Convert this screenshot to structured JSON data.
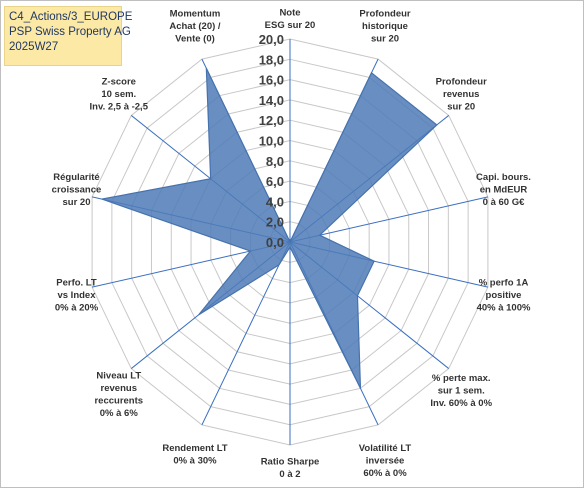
{
  "header": {
    "line1": "C4_Actions/3_EUROPE",
    "line2": "PSP Swiss Property AG",
    "line3": "2025W27"
  },
  "colors": {
    "fill": "#4f7bb7",
    "stroke": "#4672ad",
    "grid": "#c8c8c8",
    "background": "#ffffff",
    "title_box": "#fde9a6"
  },
  "chart_data": {
    "type": "radar",
    "grid": true,
    "rmin": 0,
    "rmax": 20,
    "tick_step": 2,
    "tick_labels": [
      "0,0",
      "2,0",
      "4,0",
      "6,0",
      "8,0",
      "10,0",
      "12,0",
      "14,0",
      "16,0",
      "18,0",
      "20,0"
    ],
    "categories": [
      [
        "Note",
        "ESG sur 20"
      ],
      [
        "Profondeur",
        "historique",
        "sur 20"
      ],
      [
        "Profondeur",
        "revenus",
        "sur 20"
      ],
      [
        "Capi. bours.",
        "en MdEUR",
        "0 à 60 G€"
      ],
      [
        "% perfo 1A",
        "positive",
        "40% à 100%"
      ],
      [
        "% perte max.",
        "sur 1 sem.",
        "Inv. 60% à 0%"
      ],
      [
        "Volatilité LT",
        "inversée",
        "60% à 0%"
      ],
      [
        "Ratio Sharpe",
        "0 à 2"
      ],
      [
        "Rendement LT",
        "0% à 30%"
      ],
      [
        "Niveau LT",
        "revenus",
        "reccurents",
        "0% à 6%"
      ],
      [
        "Perfo. LT",
        "vs Index",
        "0% à 20%"
      ],
      [
        "Régularité",
        "croissance",
        "sur 20"
      ],
      [
        "Z-score",
        "10 sem.",
        "Inv. 2,5 à -2,5"
      ],
      [
        "Momentum",
        "Achat (20) /",
        "Vente (0)"
      ]
    ],
    "values": [
      0,
      18.5,
      18.5,
      3.0,
      8.5,
      8.5,
      16.0,
      0.5,
      2.5,
      11.5,
      4.0,
      19.0,
      10.0,
      19.0
    ]
  }
}
